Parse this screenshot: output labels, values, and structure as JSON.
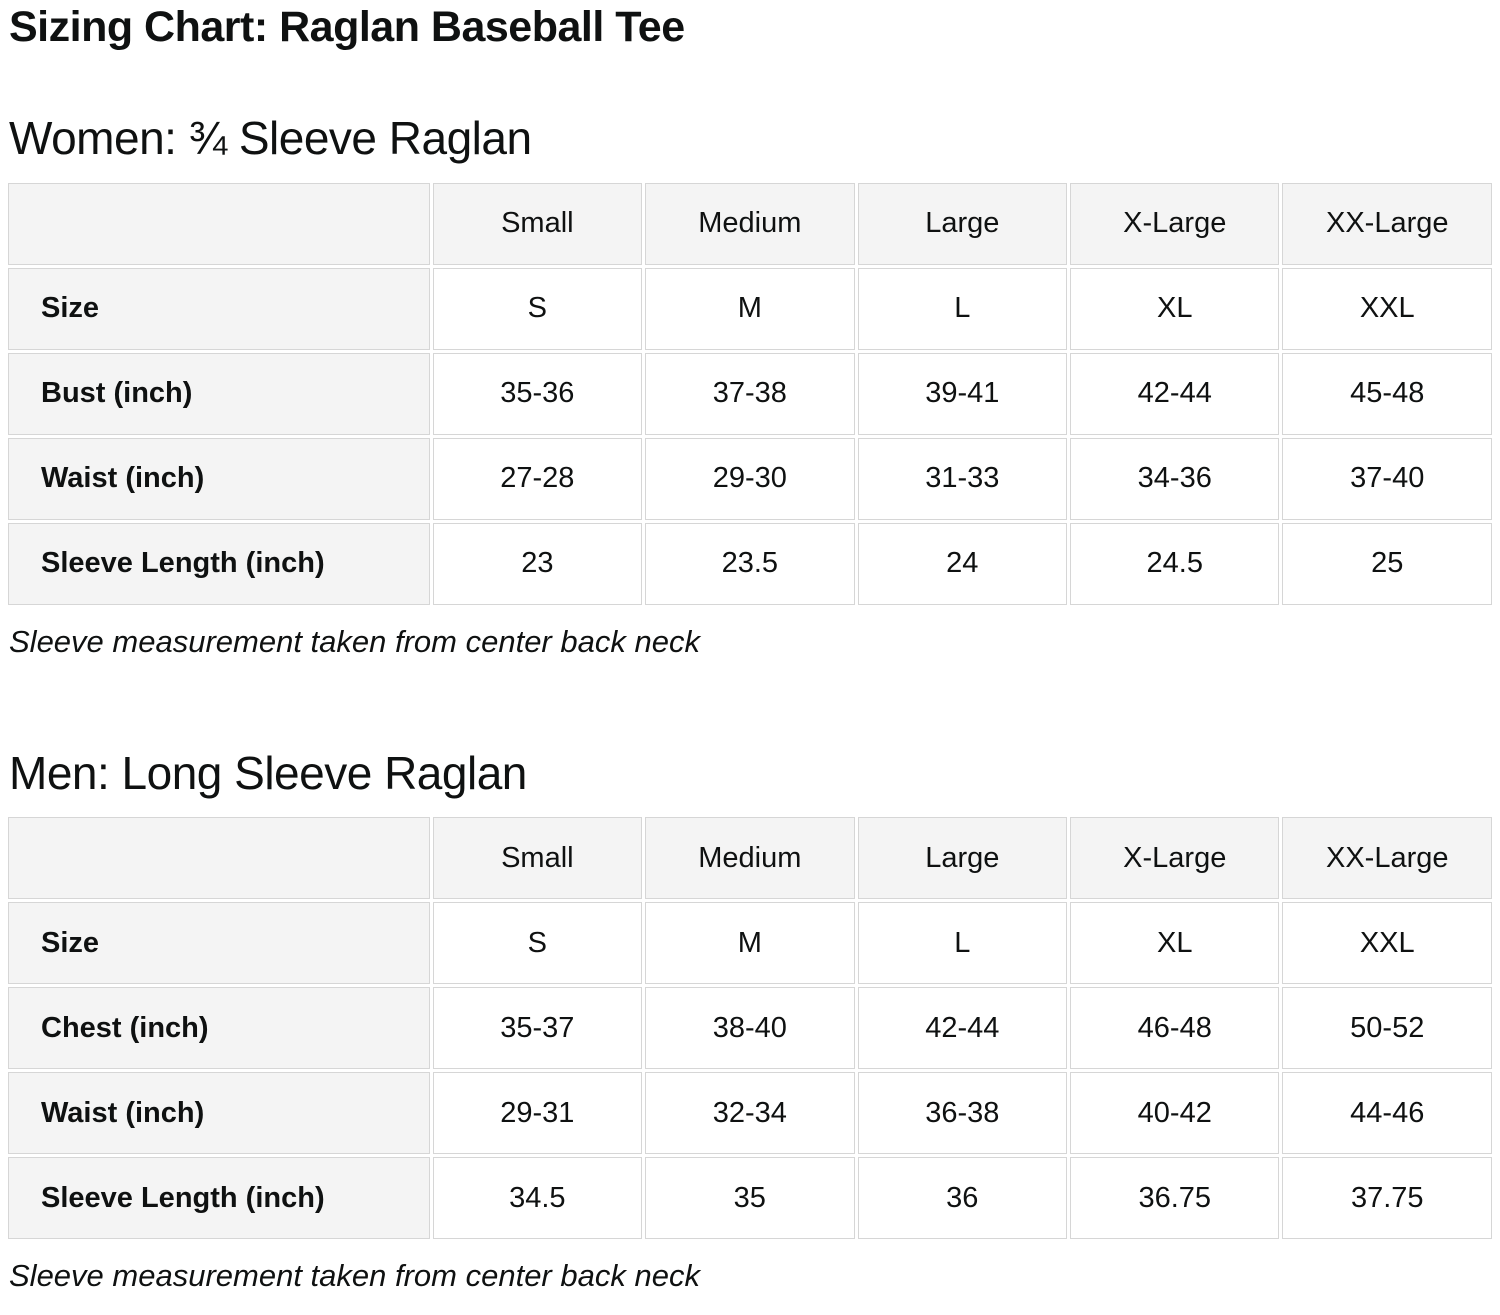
{
  "page": {
    "title": "Sizing Chart: Raglan Baseball Tee"
  },
  "colors": {
    "header_cell_bg": "#f4f4f4",
    "cell_border": "#d6d6d6",
    "text": "#0f1111",
    "page_bg": "#ffffff"
  },
  "sections": [
    {
      "heading": "Women: ¾ Sleeve Raglan",
      "note": "Sleeve measurement taken from center back neck",
      "table": {
        "columns": [
          "",
          "Small",
          "Medium",
          "Large",
          "X-Large",
          "XX-Large"
        ],
        "rows": [
          {
            "label": "Size",
            "values": [
              "S",
              "M",
              "L",
              "XL",
              "XXL"
            ]
          },
          {
            "label": "Bust (inch)",
            "values": [
              "35-36",
              "37-38",
              "39-41",
              "42-44",
              "45-48"
            ]
          },
          {
            "label": "Waist (inch)",
            "values": [
              "27-28",
              "29-30",
              "31-33",
              "34-36",
              "37-40"
            ]
          },
          {
            "label": "Sleeve Length (inch)",
            "values": [
              "23",
              "23.5",
              "24",
              "24.5",
              "25"
            ]
          }
        ]
      }
    },
    {
      "heading": "Men: Long Sleeve Raglan",
      "note": "Sleeve measurement taken from center back neck",
      "table": {
        "columns": [
          "",
          "Small",
          "Medium",
          "Large",
          "X-Large",
          "XX-Large"
        ],
        "rows": [
          {
            "label": "Size",
            "values": [
              "S",
              "M",
              "L",
              "XL",
              "XXL"
            ]
          },
          {
            "label": "Chest (inch)",
            "values": [
              "35-37",
              "38-40",
              "42-44",
              "46-48",
              "50-52"
            ]
          },
          {
            "label": "Waist (inch)",
            "values": [
              "29-31",
              "32-34",
              "36-38",
              "40-42",
              "44-46"
            ]
          },
          {
            "label": "Sleeve Length (inch)",
            "values": [
              "34.5",
              "35",
              "36",
              "36.75",
              "37.75"
            ]
          }
        ]
      }
    }
  ]
}
